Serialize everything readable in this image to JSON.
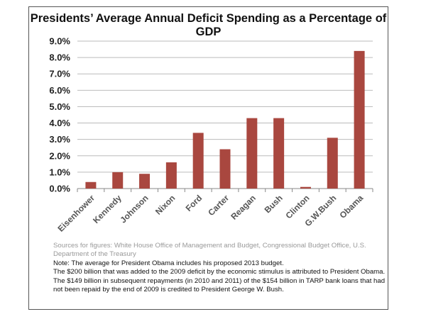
{
  "chart_data": {
    "type": "bar",
    "title": "Presidents’ Average Annual Deficit Spending as a Percentage of GDP",
    "categories": [
      "Eisenhower",
      "Kennedy",
      "Johnson",
      "Nixon",
      "Ford",
      "Carter",
      "Reagan",
      "Bush",
      "Clinton",
      "G.W.Bush",
      "Obama"
    ],
    "values": [
      0.4,
      1.0,
      0.9,
      1.6,
      3.4,
      2.4,
      4.3,
      4.3,
      0.1,
      3.1,
      8.4
    ],
    "ylim": [
      0,
      9
    ],
    "yticks": [
      "0.0%",
      "1.0%",
      "2.0%",
      "3.0%",
      "4.0%",
      "5.0%",
      "6.0%",
      "7.0%",
      "8.0%",
      "9.0%"
    ],
    "xlabel": "",
    "ylabel": "",
    "grid": true,
    "bar_color": "#a9473f"
  },
  "notes": {
    "sources": "Sources for figures: White House Office of Management and Budget, Congressional Budget Office, U.S. Department of the Treasury",
    "lines": [
      "Note: The average for President Obama includes his proposed 2013 budget.",
      "The $200 billion that was added to the 2009 deficit by the economic stimulus is attributed to President Obama.",
      "The $149 billion in subsequent repayments (in 2010 and 2011) of the $154 billion in TARP bank loans that had not been repaid by the end of 2009 is credited to President George W. Bush."
    ]
  }
}
